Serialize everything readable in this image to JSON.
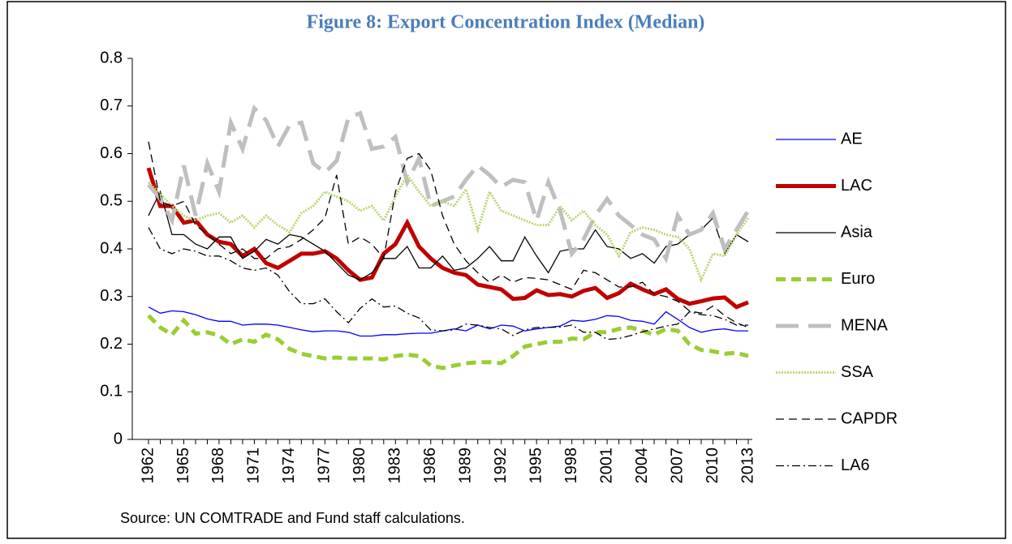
{
  "chart_data": {
    "type": "line",
    "title": "Figure 8: Export Concentration Index (Median)",
    "source": "Source: UN COMTRADE and Fund staff calculations.",
    "x": [
      1962,
      1963,
      1964,
      1965,
      1966,
      1967,
      1968,
      1969,
      1970,
      1971,
      1972,
      1973,
      1974,
      1975,
      1976,
      1977,
      1978,
      1979,
      1980,
      1981,
      1982,
      1983,
      1984,
      1985,
      1986,
      1987,
      1988,
      1989,
      1990,
      1991,
      1992,
      1993,
      1994,
      1995,
      1996,
      1997,
      1998,
      1999,
      2000,
      2001,
      2002,
      2003,
      2004,
      2005,
      2006,
      2007,
      2008,
      2009,
      2010,
      2011,
      2012,
      2013
    ],
    "xlim": [
      1962,
      2013
    ],
    "xticks": [
      1962,
      1965,
      1968,
      1971,
      1974,
      1977,
      1980,
      1983,
      1986,
      1989,
      1992,
      1995,
      1998,
      2001,
      2004,
      2007,
      2010,
      2013
    ],
    "ylim": [
      0,
      0.8
    ],
    "yticks": [
      0,
      0.1,
      0.2,
      0.3,
      0.4,
      0.5,
      0.6,
      0.7,
      0.8
    ],
    "grid": false,
    "legend": "right",
    "series": [
      {
        "name": "AE",
        "color": "#0000ff",
        "linestyle": "solid",
        "values": [
          0.278,
          0.265,
          0.27,
          0.268,
          0.262,
          0.253,
          0.248,
          0.248,
          0.24,
          0.242,
          0.242,
          0.24,
          0.235,
          0.23,
          0.226,
          0.228,
          0.228,
          0.225,
          0.217,
          0.217,
          0.22,
          0.22,
          0.222,
          0.223,
          0.223,
          0.228,
          0.232,
          0.228,
          0.24,
          0.232,
          0.24,
          0.238,
          0.228,
          0.232,
          0.235,
          0.238,
          0.25,
          0.248,
          0.252,
          0.26,
          0.258,
          0.25,
          0.248,
          0.242,
          0.268,
          0.252,
          0.235,
          0.225,
          0.23,
          0.232,
          0.228,
          0.228
        ]
      },
      {
        "name": "LAC",
        "color": "#c00000",
        "linestyle": "thick",
        "values": [
          0.57,
          0.49,
          0.49,
          0.455,
          0.46,
          0.43,
          0.415,
          0.41,
          0.385,
          0.4,
          0.37,
          0.36,
          0.375,
          0.39,
          0.39,
          0.395,
          0.38,
          0.355,
          0.335,
          0.34,
          0.39,
          0.41,
          0.455,
          0.405,
          0.38,
          0.36,
          0.35,
          0.345,
          0.325,
          0.32,
          0.315,
          0.295,
          0.297,
          0.313,
          0.303,
          0.305,
          0.3,
          0.312,
          0.318,
          0.297,
          0.307,
          0.327,
          0.315,
          0.305,
          0.315,
          0.295,
          0.285,
          0.29,
          0.296,
          0.298,
          0.278,
          0.288
        ]
      },
      {
        "name": "Asia",
        "color": "#000000",
        "linestyle": "solid",
        "values": [
          0.47,
          0.52,
          0.43,
          0.43,
          0.41,
          0.4,
          0.425,
          0.425,
          0.38,
          0.395,
          0.42,
          0.41,
          0.43,
          0.425,
          0.41,
          0.395,
          0.37,
          0.345,
          0.335,
          0.35,
          0.38,
          0.38,
          0.405,
          0.36,
          0.36,
          0.385,
          0.355,
          0.36,
          0.38,
          0.405,
          0.375,
          0.375,
          0.425,
          0.385,
          0.35,
          0.395,
          0.4,
          0.4,
          0.44,
          0.405,
          0.4,
          0.38,
          0.39,
          0.37,
          0.405,
          0.41,
          0.43,
          0.44,
          0.465,
          0.39,
          0.43,
          0.415
        ]
      },
      {
        "name": "Euro",
        "color": "#9acd32",
        "linestyle": "dash-thick",
        "values": [
          0.26,
          0.235,
          0.22,
          0.25,
          0.222,
          0.225,
          0.218,
          0.2,
          0.21,
          0.205,
          0.22,
          0.21,
          0.19,
          0.18,
          0.175,
          0.17,
          0.172,
          0.17,
          0.17,
          0.17,
          0.168,
          0.175,
          0.178,
          0.175,
          0.155,
          0.15,
          0.155,
          0.16,
          0.162,
          0.162,
          0.16,
          0.175,
          0.195,
          0.2,
          0.205,
          0.205,
          0.212,
          0.21,
          0.225,
          0.225,
          0.232,
          0.235,
          0.228,
          0.22,
          0.232,
          0.228,
          0.2,
          0.188,
          0.185,
          0.18,
          0.182,
          0.175
        ]
      },
      {
        "name": "MENA",
        "color": "#bfbfbf",
        "linestyle": "longdash-thick",
        "values": [
          0.535,
          0.505,
          0.46,
          0.575,
          0.47,
          0.58,
          0.52,
          0.665,
          0.61,
          0.695,
          0.67,
          0.615,
          0.66,
          0.665,
          0.58,
          0.56,
          0.585,
          0.675,
          0.685,
          0.61,
          0.615,
          0.635,
          0.54,
          0.59,
          0.49,
          0.5,
          0.51,
          0.545,
          0.575,
          0.555,
          0.53,
          0.545,
          0.54,
          0.46,
          0.54,
          0.48,
          0.39,
          0.42,
          0.47,
          0.505,
          0.47,
          0.45,
          0.43,
          0.42,
          0.38,
          0.47,
          0.43,
          0.44,
          0.475,
          0.4,
          0.44,
          0.48
        ]
      },
      {
        "name": "SSA",
        "color": "#b8d774",
        "linestyle": "dotted",
        "values": [
          0.54,
          0.515,
          0.49,
          0.47,
          0.46,
          0.47,
          0.475,
          0.455,
          0.47,
          0.445,
          0.47,
          0.45,
          0.435,
          0.475,
          0.49,
          0.52,
          0.51,
          0.5,
          0.48,
          0.49,
          0.46,
          0.51,
          0.555,
          0.52,
          0.49,
          0.5,
          0.49,
          0.525,
          0.44,
          0.52,
          0.48,
          0.47,
          0.46,
          0.45,
          0.45,
          0.49,
          0.46,
          0.48,
          0.45,
          0.43,
          0.385,
          0.435,
          0.445,
          0.44,
          0.43,
          0.425,
          0.4,
          0.335,
          0.39,
          0.385,
          0.43,
          0.465
        ]
      },
      {
        "name": "CAPDR",
        "color": "#000000",
        "linestyle": "dashed",
        "values": [
          0.625,
          0.5,
          0.49,
          0.5,
          0.45,
          0.43,
          0.41,
          0.39,
          0.4,
          0.38,
          0.38,
          0.4,
          0.405,
          0.42,
          0.44,
          0.465,
          0.555,
          0.41,
          0.425,
          0.41,
          0.38,
          0.52,
          0.59,
          0.6,
          0.565,
          0.47,
          0.41,
          0.375,
          0.35,
          0.33,
          0.345,
          0.33,
          0.34,
          0.338,
          0.335,
          0.325,
          0.315,
          0.355,
          0.35,
          0.335,
          0.32,
          0.32,
          0.33,
          0.305,
          0.3,
          0.29,
          0.27,
          0.265,
          0.28,
          0.26,
          0.245,
          0.235
        ]
      },
      {
        "name": "LA6",
        "color": "#000000",
        "linestyle": "dashdot",
        "values": [
          0.445,
          0.4,
          0.39,
          0.4,
          0.395,
          0.385,
          0.385,
          0.375,
          0.36,
          0.355,
          0.36,
          0.345,
          0.31,
          0.285,
          0.285,
          0.295,
          0.268,
          0.245,
          0.275,
          0.295,
          0.278,
          0.28,
          0.265,
          0.255,
          0.23,
          0.228,
          0.23,
          0.242,
          0.24,
          0.235,
          0.232,
          0.218,
          0.23,
          0.235,
          0.235,
          0.236,
          0.24,
          0.225,
          0.225,
          0.21,
          0.212,
          0.218,
          0.226,
          0.232,
          0.238,
          0.242,
          0.268,
          0.262,
          0.26,
          0.252,
          0.24,
          0.24
        ]
      }
    ]
  }
}
